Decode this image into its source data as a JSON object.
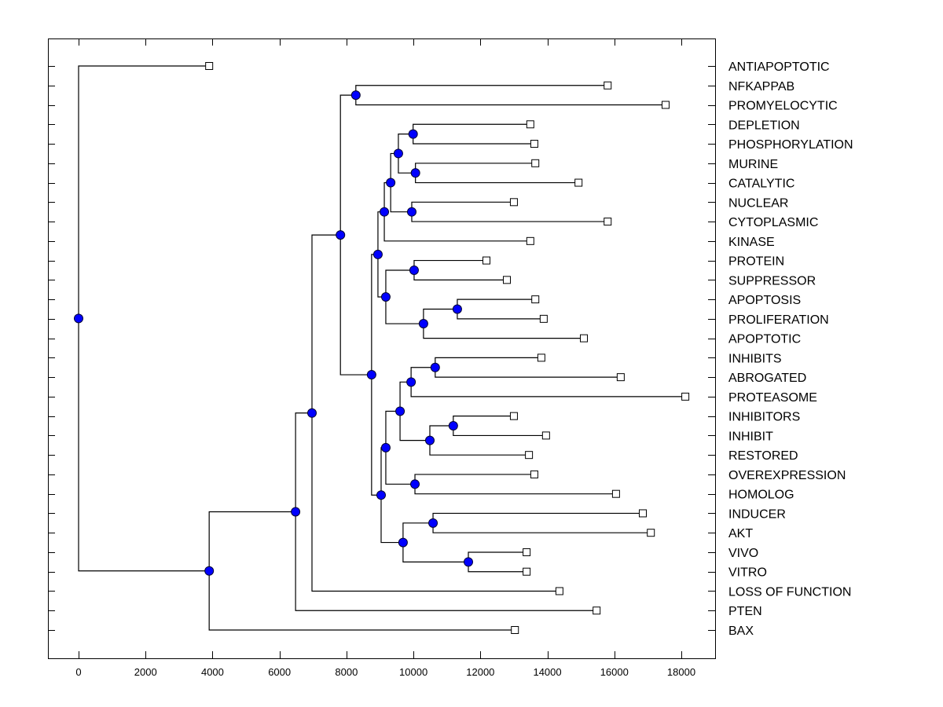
{
  "chart_data": {
    "type": "dendrogram",
    "title": "",
    "xlabel": "",
    "ylabel": "",
    "xlim": [
      -900,
      19000
    ],
    "xticks": [
      0,
      2000,
      4000,
      6000,
      8000,
      10000,
      12000,
      14000,
      16000,
      18000
    ],
    "xtick_labels": [
      "0",
      "2000",
      "4000",
      "6000",
      "8000",
      "10000",
      "12000",
      "14000",
      "16000",
      "18000"
    ],
    "grid": false,
    "leaf_order": [
      "ANTIAPOPTOTIC",
      "NFKAPPAB",
      "PROMYELOCYTIC",
      "DEPLETION",
      "PHOSPHORYLATION",
      "MURINE",
      "CATALYTIC",
      "NUCLEAR",
      "CYTOPLASMIC",
      "KINASE",
      "PROTEIN",
      "SUPPRESSOR",
      "APOPTOSIS",
      "PROLIFERATION",
      "APOPTOTIC",
      "INHIBITS",
      "ABROGATED",
      "PROTEASOME",
      "INHIBITORS",
      "INHIBIT",
      "RESTORED",
      "OVEREXPRESSION",
      "HOMOLOG",
      "INDUCER",
      "AKT",
      "VIVO",
      "VITRO",
      "LOSS OF FUNCTION",
      "PTEN",
      "BAX"
    ],
    "leaf_values": {
      "ANTIAPOPTOTIC": 3900,
      "NFKAPPAB": 15800,
      "PROMYELOCYTIC": 17530,
      "DEPLETION": 13490,
      "PHOSPHORYLATION": 13610,
      "MURINE": 13640,
      "CATALYTIC": 14930,
      "NUCLEAR": 13000,
      "CYTOPLASMIC": 15800,
      "KINASE": 13490,
      "PROTEIN": 12180,
      "SUPPRESSOR": 12790,
      "APOPTOSIS": 13640,
      "PROLIFERATION": 13890,
      "APOPTOTIC": 15090,
      "INHIBITS": 13820,
      "ABROGATED": 16190,
      "PROTEASOME": 18120,
      "INHIBITORS": 13000,
      "INHIBIT": 13960,
      "RESTORED": 13450,
      "OVEREXPRESSION": 13610,
      "HOMOLOG": 16050,
      "INDUCER": 16850,
      "AKT": 17090,
      "VIVO": 13380,
      "VITRO": 13380,
      "LOSS OF FUNCTION": 14360,
      "PTEN": 15470,
      "BAX": 13030
    },
    "tree": {
      "value": 0,
      "children": [
        "ANTIAPOPTOTIC",
        {
          "value": 3900,
          "children": [
            {
              "value": 6480,
              "children": [
                {
                  "value": 6970,
                  "children": [
                    {
                      "value": 7820,
                      "children": [
                        {
                          "value": 8280,
                          "children": [
                            "NFKAPPAB",
                            "PROMYELOCYTIC"
                          ]
                        },
                        {
                          "value": 8750,
                          "children": [
                            {
                              "value": 8940,
                              "children": [
                                {
                                  "value": 9130,
                                  "children": [
                                    {
                                      "value": 9320,
                                      "children": [
                                        {
                                          "value": 9550,
                                          "children": [
                                            {
                                              "value": 9990,
                                              "children": [
                                                "DEPLETION",
                                                "PHOSPHORYLATION"
                                              ]
                                            },
                                            {
                                              "value": 10060,
                                              "children": [
                                                "MURINE",
                                                "CATALYTIC"
                                              ]
                                            }
                                          ]
                                        },
                                        {
                                          "value": 9950,
                                          "children": [
                                            "NUCLEAR",
                                            "CYTOPLASMIC"
                                          ]
                                        }
                                      ]
                                    },
                                    "KINASE"
                                  ]
                                },
                                {
                                  "value": 9175,
                                  "children": [
                                    {
                                      "value": 10020,
                                      "children": [
                                        "PROTEIN",
                                        "SUPPRESSOR"
                                      ]
                                    },
                                    {
                                      "value": 10300,
                                      "children": [
                                        {
                                          "value": 11310,
                                          "children": [
                                            "APOPTOSIS",
                                            "PROLIFERATION"
                                          ]
                                        },
                                        "APOPTOTIC"
                                      ]
                                    }
                                  ]
                                }
                              ]
                            },
                            {
                              "value": 9035,
                              "children": [
                                {
                                  "value": 9175,
                                  "children": [
                                    {
                                      "value": 9600,
                                      "children": [
                                        {
                                          "value": 9930,
                                          "children": [
                                            {
                                              "value": 10650,
                                              "children": [
                                                "INHIBITS",
                                                "ABROGATED"
                                              ]
                                            },
                                            "PROTEASOME"
                                          ]
                                        },
                                        {
                                          "value": 10490,
                                          "children": [
                                            {
                                              "value": 11190,
                                              "children": [
                                                "INHIBITORS",
                                                "INHIBIT"
                                              ]
                                            },
                                            "RESTORED"
                                          ]
                                        }
                                      ]
                                    },
                                    {
                                      "value": 10045,
                                      "children": [
                                        "OVEREXPRESSION",
                                        "HOMOLOG"
                                      ]
                                    }
                                  ]
                                },
                                {
                                  "value": 9690,
                                  "children": [
                                    {
                                      "value": 10585,
                                      "children": [
                                        "INDUCER",
                                        "AKT"
                                      ]
                                    },
                                    {
                                      "value": 11640,
                                      "children": [
                                        "VIVO",
                                        "VITRO"
                                      ]
                                    }
                                  ]
                                }
                              ]
                            }
                          ]
                        }
                      ]
                    },
                    "LOSS OF FUNCTION"
                  ]
                },
                "PTEN"
              ]
            },
            "BAX"
          ]
        }
      ]
    },
    "colors": {
      "internal_node": "#0000ff",
      "leaf_node": "#ffffff",
      "line": "#000000"
    }
  }
}
